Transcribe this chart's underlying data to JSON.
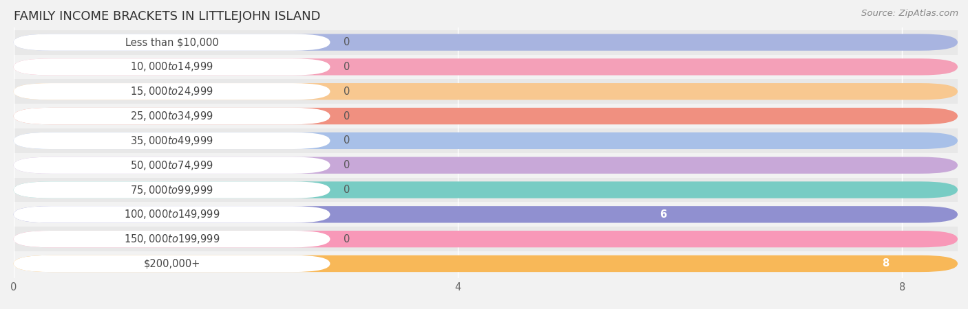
{
  "title": "FAMILY INCOME BRACKETS IN LITTLEJOHN ISLAND",
  "source": "Source: ZipAtlas.com",
  "categories": [
    "Less than $10,000",
    "$10,000 to $14,999",
    "$15,000 to $24,999",
    "$25,000 to $34,999",
    "$35,000 to $49,999",
    "$50,000 to $74,999",
    "$75,000 to $99,999",
    "$100,000 to $149,999",
    "$150,000 to $199,999",
    "$200,000+"
  ],
  "values": [
    0,
    0,
    0,
    0,
    0,
    0,
    0,
    6,
    0,
    8
  ],
  "bar_colors": [
    "#a8b4e0",
    "#f4a0b8",
    "#f8c890",
    "#f09080",
    "#a8c0e8",
    "#c8a8d8",
    "#78ccc4",
    "#9090d0",
    "#f898b8",
    "#f8b858"
  ],
  "background_color": "#f2f2f2",
  "row_bg_odd": "#e8e8e8",
  "row_bg_even": "#f2f2f2",
  "xlim_max": 8.5,
  "xticks": [
    0,
    4,
    8
  ],
  "title_fontsize": 13,
  "label_fontsize": 10.5,
  "value_fontsize": 10.5,
  "source_fontsize": 9.5
}
